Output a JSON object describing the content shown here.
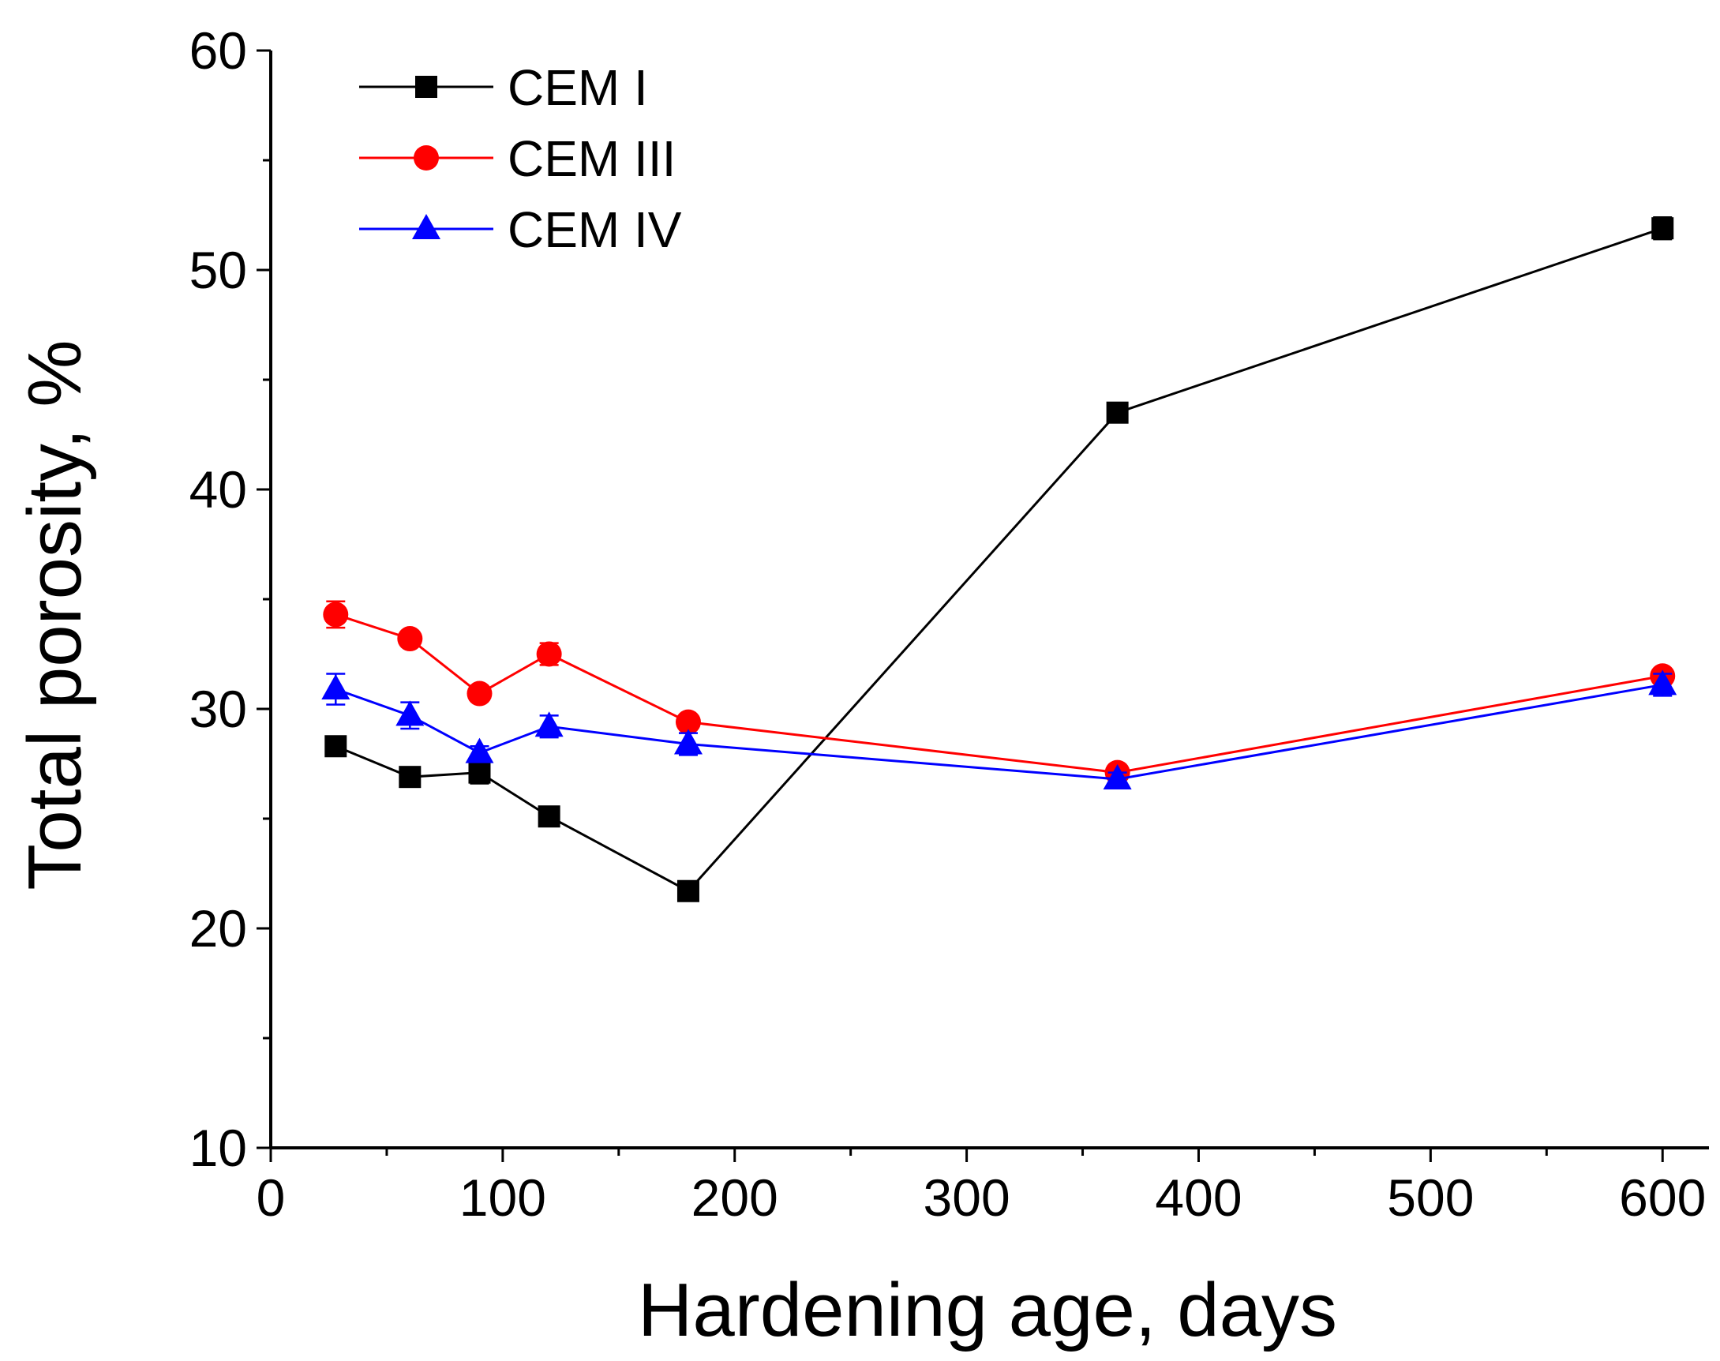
{
  "chart_data": {
    "type": "line",
    "title": "",
    "xlabel": "Hardening age, days",
    "ylabel": "Total porosity,  %",
    "xlim": [
      0,
      620
    ],
    "ylim": [
      10,
      60
    ],
    "xticks": [
      0,
      100,
      200,
      300,
      400,
      500,
      600
    ],
    "xtick_labels": [
      "0",
      "100",
      "200",
      "300",
      "400",
      "500",
      "600"
    ],
    "yticks": [
      10,
      20,
      30,
      40,
      50,
      60
    ],
    "ytick_labels": [
      "10",
      "20",
      "30",
      "40",
      "50",
      "60"
    ],
    "x_minor_step": 50,
    "y_minor_step": 5,
    "grid": false,
    "legend_position": "top-left",
    "series": [
      {
        "name": "CEM I",
        "color": "#000000",
        "marker": "square",
        "x": [
          28,
          60,
          90,
          120,
          180,
          365,
          600
        ],
        "y": [
          28.3,
          26.9,
          27.1,
          25.1,
          21.7,
          43.5,
          51.9
        ],
        "err": [
          0.3,
          0.3,
          0.5,
          0.3,
          0.3,
          0.3,
          0.5
        ]
      },
      {
        "name": "CEM III",
        "color": "#ff0000",
        "marker": "circle",
        "x": [
          28,
          60,
          90,
          120,
          180,
          365,
          600
        ],
        "y": [
          34.3,
          33.2,
          30.7,
          32.5,
          29.4,
          27.1,
          31.5
        ],
        "err": [
          0.6,
          0.3,
          0.3,
          0.5,
          0.3,
          0.3,
          0.3
        ]
      },
      {
        "name": "CEM IV",
        "color": "#0000ff",
        "marker": "triangle",
        "x": [
          28,
          60,
          90,
          120,
          180,
          365,
          600
        ],
        "y": [
          30.9,
          29.7,
          28.0,
          29.2,
          28.4,
          26.8,
          31.1
        ],
        "err": [
          0.7,
          0.6,
          0.3,
          0.5,
          0.5,
          0.3,
          0.5
        ]
      }
    ]
  }
}
